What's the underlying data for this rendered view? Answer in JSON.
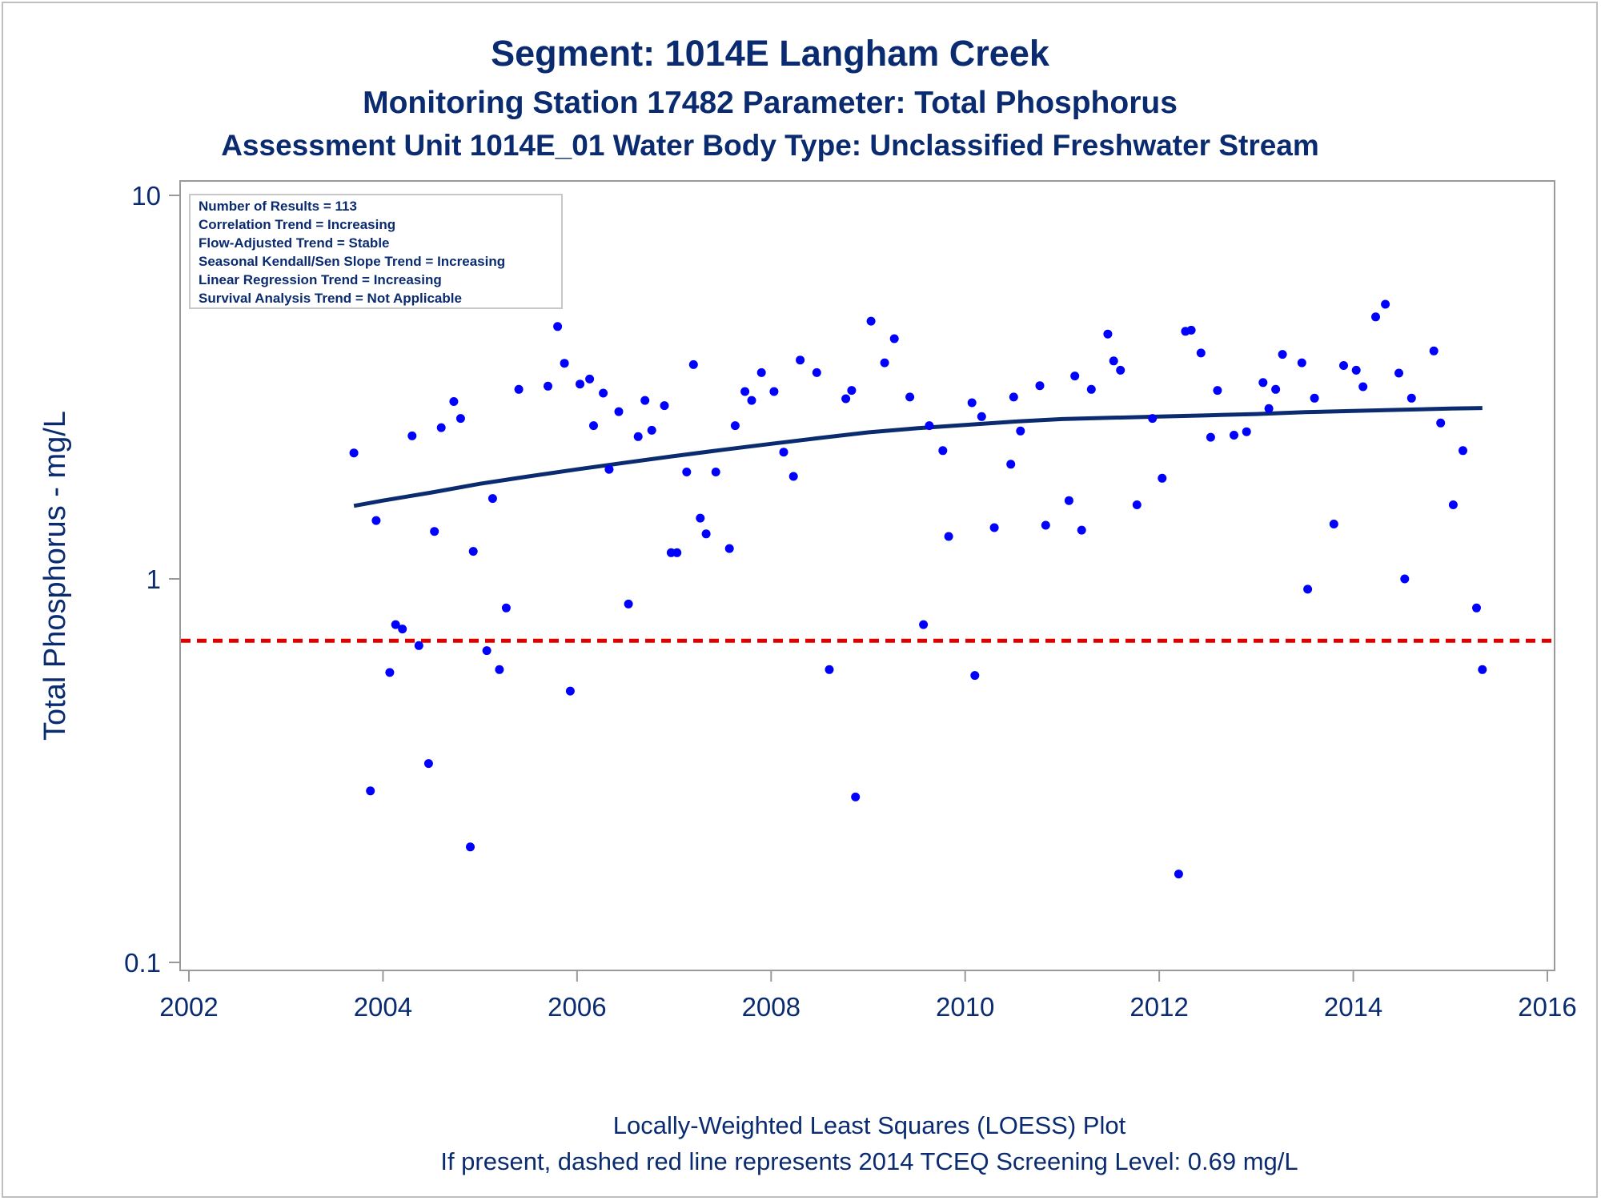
{
  "chart_data": {
    "type": "scatter",
    "title": "Segment: 1014E  Langham Creek",
    "subtitle": "Monitoring Station 17482 Parameter: Total Phosphorus",
    "subtitle2": "Assessment Unit 1014E_01   Water Body Type: Unclassified Freshwater Stream",
    "xlabel": "",
    "ylabel": "Total Phosphorus - mg/L",
    "xlim": [
      2002,
      2016
    ],
    "ylim": [
      0.1,
      10
    ],
    "yscale": "log",
    "x_ticks": [
      "2002",
      "2004",
      "2006",
      "2008",
      "2010",
      "2012",
      "2014",
      "2016"
    ],
    "y_ticks": [
      "0.1",
      "1",
      "10"
    ],
    "grid": false,
    "stats_box": {
      "placement": "top-left",
      "lines": [
        "Number of Results = 113",
        "Correlation Trend = Increasing",
        "Flow-Adjusted Trend = Stable",
        "Seasonal Kendall/Sen Slope Trend = Increasing",
        "Linear Regression Trend = Increasing",
        "Survival Analysis Trend = Not Applicable"
      ]
    },
    "footnotes": [
      "Locally-Weighted Least Squares (LOESS) Plot",
      "If present, dashed red line represents 2014 TCEQ Screening Level: 0.69 mg/L"
    ],
    "screening_level": 0.69,
    "colors": {
      "points": "#0000ff",
      "loess": "#0b2b70",
      "screening": "#dd0000",
      "text": "#0b2b70",
      "axis": "#9a9a9a"
    },
    "series": [
      {
        "kind": "points",
        "points": [
          [
            2003.7,
            2.13
          ],
          [
            2003.87,
            0.28
          ],
          [
            2003.93,
            1.42
          ],
          [
            2004.07,
            0.57
          ],
          [
            2004.13,
            0.76
          ],
          [
            2004.2,
            0.74
          ],
          [
            2004.3,
            2.36
          ],
          [
            2004.37,
            0.67
          ],
          [
            2004.47,
            0.33
          ],
          [
            2004.53,
            1.33
          ],
          [
            2004.6,
            2.48
          ],
          [
            2004.73,
            2.9
          ],
          [
            2004.8,
            2.62
          ],
          [
            2004.9,
            0.2
          ],
          [
            2004.93,
            1.18
          ],
          [
            2005.07,
            0.65
          ],
          [
            2005.13,
            1.62
          ],
          [
            2005.2,
            0.58
          ],
          [
            2005.27,
            0.84
          ],
          [
            2005.4,
            3.12
          ],
          [
            2005.7,
            3.18
          ],
          [
            2005.8,
            4.55
          ],
          [
            2005.87,
            3.65
          ],
          [
            2005.93,
            0.51
          ],
          [
            2006.03,
            3.22
          ],
          [
            2006.13,
            3.32
          ],
          [
            2006.17,
            2.51
          ],
          [
            2006.27,
            3.05
          ],
          [
            2006.33,
            1.93
          ],
          [
            2006.43,
            2.73
          ],
          [
            2006.53,
            0.86
          ],
          [
            2006.63,
            2.35
          ],
          [
            2006.7,
            2.92
          ],
          [
            2006.77,
            2.44
          ],
          [
            2006.9,
            2.83
          ],
          [
            2006.97,
            1.17
          ],
          [
            2007.03,
            1.17
          ],
          [
            2007.13,
            1.9
          ],
          [
            2007.2,
            3.62
          ],
          [
            2007.27,
            1.44
          ],
          [
            2007.33,
            1.31
          ],
          [
            2007.43,
            1.9
          ],
          [
            2007.57,
            1.2
          ],
          [
            2007.63,
            2.51
          ],
          [
            2007.73,
            3.08
          ],
          [
            2007.8,
            2.92
          ],
          [
            2007.9,
            3.45
          ],
          [
            2008.03,
            3.08
          ],
          [
            2008.13,
            2.14
          ],
          [
            2008.23,
            1.85
          ],
          [
            2008.3,
            3.72
          ],
          [
            2008.47,
            3.45
          ],
          [
            2008.6,
            0.58
          ],
          [
            2008.77,
            2.95
          ],
          [
            2008.83,
            3.1
          ],
          [
            2008.87,
            0.27
          ],
          [
            2009.03,
            4.7
          ],
          [
            2009.17,
            3.66
          ],
          [
            2009.27,
            4.23
          ],
          [
            2009.43,
            2.98
          ],
          [
            2009.57,
            0.76
          ],
          [
            2009.63,
            2.51
          ],
          [
            2009.77,
            2.16
          ],
          [
            2009.83,
            1.29
          ],
          [
            2010.07,
            2.88
          ],
          [
            2010.1,
            0.56
          ],
          [
            2010.17,
            2.65
          ],
          [
            2010.3,
            1.36
          ],
          [
            2010.47,
            1.99
          ],
          [
            2010.5,
            2.98
          ],
          [
            2010.57,
            2.43
          ],
          [
            2010.77,
            3.19
          ],
          [
            2010.83,
            1.38
          ],
          [
            2011.07,
            1.6
          ],
          [
            2011.13,
            3.38
          ],
          [
            2011.2,
            1.34
          ],
          [
            2011.3,
            3.12
          ],
          [
            2011.47,
            4.35
          ],
          [
            2011.53,
            3.7
          ],
          [
            2011.6,
            3.5
          ],
          [
            2011.77,
            1.56
          ],
          [
            2011.93,
            2.62
          ],
          [
            2012.03,
            1.83
          ],
          [
            2012.2,
            0.17
          ],
          [
            2012.27,
            4.42
          ],
          [
            2012.33,
            4.45
          ],
          [
            2012.43,
            3.88
          ],
          [
            2012.53,
            2.34
          ],
          [
            2012.6,
            3.1
          ],
          [
            2012.77,
            2.37
          ],
          [
            2012.9,
            2.42
          ],
          [
            2013.07,
            3.25
          ],
          [
            2013.13,
            2.78
          ],
          [
            2013.2,
            3.12
          ],
          [
            2013.27,
            3.85
          ],
          [
            2013.47,
            3.66
          ],
          [
            2013.53,
            0.94
          ],
          [
            2013.6,
            2.96
          ],
          [
            2013.8,
            1.39
          ],
          [
            2013.9,
            3.6
          ],
          [
            2014.03,
            3.5
          ],
          [
            2014.1,
            3.17
          ],
          [
            2014.23,
            4.82
          ],
          [
            2014.33,
            5.2
          ],
          [
            2014.47,
            3.44
          ],
          [
            2014.53,
            1.0
          ],
          [
            2014.6,
            2.96
          ],
          [
            2014.83,
            3.93
          ],
          [
            2014.9,
            2.55
          ],
          [
            2015.03,
            1.56
          ],
          [
            2015.13,
            2.16
          ],
          [
            2015.27,
            0.84
          ],
          [
            2015.33,
            0.58
          ]
        ]
      },
      {
        "kind": "loess",
        "points": [
          [
            2003.7,
            1.55
          ],
          [
            2004.0,
            1.6
          ],
          [
            2004.5,
            1.68
          ],
          [
            2005.0,
            1.77
          ],
          [
            2005.5,
            1.85
          ],
          [
            2006.0,
            1.93
          ],
          [
            2006.5,
            2.01
          ],
          [
            2007.0,
            2.09
          ],
          [
            2007.5,
            2.17
          ],
          [
            2008.0,
            2.25
          ],
          [
            2008.5,
            2.33
          ],
          [
            2009.0,
            2.41
          ],
          [
            2009.5,
            2.47
          ],
          [
            2010.0,
            2.52
          ],
          [
            2010.5,
            2.57
          ],
          [
            2011.0,
            2.61
          ],
          [
            2011.5,
            2.63
          ],
          [
            2012.0,
            2.65
          ],
          [
            2012.5,
            2.67
          ],
          [
            2013.0,
            2.69
          ],
          [
            2013.5,
            2.72
          ],
          [
            2014.0,
            2.74
          ],
          [
            2014.5,
            2.76
          ],
          [
            2015.0,
            2.78
          ],
          [
            2015.33,
            2.79
          ]
        ]
      }
    ]
  }
}
